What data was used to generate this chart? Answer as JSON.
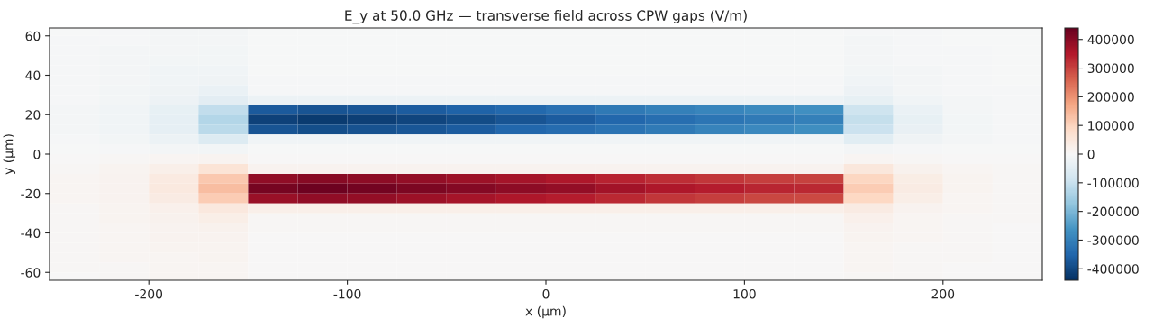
{
  "chart_data": {
    "type": "heatmap",
    "title": "E_y at 50.0 GHz — transverse field across CPW gaps (V/m)",
    "xlabel": "x (µm)",
    "ylabel": "y (µm)",
    "x": [
      -237.5,
      -212.5,
      -187.5,
      -162.5,
      -137.5,
      -112.5,
      -87.5,
      -62.5,
      -37.5,
      -12.5,
      12.5,
      37.5,
      62.5,
      87.5,
      112.5,
      137.5,
      162.5,
      187.5,
      212.5,
      237.5
    ],
    "y": [
      62.5,
      57.5,
      52.5,
      47.5,
      42.5,
      37.5,
      32.5,
      27.5,
      22.5,
      17.5,
      12.5,
      7.5,
      2.5,
      -2.5,
      -7.5,
      -12.5,
      -17.5,
      -22.5,
      -27.5,
      -32.5,
      -37.5,
      -42.5,
      -47.5,
      -52.5,
      -57.5,
      -62.5
    ],
    "cells": [
      [
        -3000,
        -5000,
        -8000,
        -8000,
        -2000,
        -2000,
        -2000,
        -2000,
        -2000,
        -2000,
        -2000,
        -2000,
        -2000,
        -2000,
        -2000,
        -2000,
        -6000,
        -4000,
        -3000,
        -2000
      ],
      [
        -4000,
        -6000,
        -9000,
        -9000,
        -2000,
        -2000,
        -2000,
        -2000,
        -2000,
        -2000,
        -2000,
        -2000,
        -2000,
        -2000,
        -2000,
        -2000,
        -7000,
        -5000,
        -3000,
        -2000
      ],
      [
        -4000,
        -7000,
        -10000,
        -11000,
        -2000,
        -2000,
        -2000,
        -2000,
        -2000,
        -2000,
        -2000,
        -2000,
        -2000,
        -2000,
        -2000,
        -2000,
        -8000,
        -5000,
        -4000,
        -3000
      ],
      [
        -5000,
        -8000,
        -12000,
        -13000,
        -3000,
        -3000,
        -3000,
        -3000,
        -3000,
        -3000,
        -3000,
        -3000,
        -3000,
        -3000,
        -3000,
        -3000,
        -10000,
        -6000,
        -4000,
        -3000
      ],
      [
        -5000,
        -9000,
        -14000,
        -16000,
        -3000,
        -3000,
        -3000,
        -3000,
        -3000,
        -3000,
        -3000,
        -3000,
        -3000,
        -3000,
        -3000,
        -3000,
        -12000,
        -7000,
        -5000,
        -3000
      ],
      [
        -5000,
        -10000,
        -16000,
        -20000,
        -4000,
        -4000,
        -4000,
        -4000,
        -4000,
        -4000,
        -4000,
        -4000,
        -4000,
        -4000,
        -4000,
        -4000,
        -15000,
        -8000,
        -5000,
        -3000
      ],
      [
        -6000,
        -11000,
        -18000,
        -28000,
        -6000,
        -6000,
        -6000,
        -6000,
        -6000,
        -6000,
        -6000,
        -6000,
        -6000,
        -6000,
        -6000,
        -6000,
        -22000,
        -10000,
        -6000,
        -4000
      ],
      [
        -6000,
        -12000,
        -22000,
        -45000,
        -25000,
        -25000,
        -25000,
        -25000,
        -25000,
        -25000,
        -25000,
        -25000,
        -25000,
        -25000,
        -25000,
        -25000,
        -35000,
        -14000,
        -7000,
        -4000
      ],
      [
        -7000,
        -14000,
        -35000,
        -110000,
        -370000,
        -380000,
        -375000,
        -365000,
        -355000,
        -345000,
        -330000,
        -315000,
        -300000,
        -290000,
        -280000,
        -270000,
        -90000,
        -30000,
        -10000,
        -5000
      ],
      [
        -8000,
        -15000,
        -40000,
        -130000,
        -410000,
        -420000,
        -415000,
        -405000,
        -395000,
        -380000,
        -365000,
        -350000,
        -335000,
        -320000,
        -310000,
        -300000,
        -105000,
        -35000,
        -12000,
        -6000
      ],
      [
        -8000,
        -15000,
        -38000,
        -120000,
        -380000,
        -390000,
        -385000,
        -375000,
        -365000,
        -350000,
        -340000,
        -325000,
        -310000,
        -295000,
        -285000,
        -275000,
        -95000,
        -32000,
        -11000,
        -6000
      ],
      [
        -6000,
        -12000,
        -25000,
        -60000,
        -15000,
        -15000,
        -15000,
        -15000,
        -15000,
        -15000,
        -15000,
        -15000,
        -15000,
        -15000,
        -15000,
        -15000,
        -50000,
        -20000,
        -8000,
        -5000
      ],
      [
        -3000,
        -5000,
        -8000,
        -12000,
        -3000,
        -3000,
        -3000,
        -3000,
        -3000,
        -3000,
        -3000,
        -3000,
        -3000,
        -3000,
        -3000,
        -3000,
        -10000,
        -5000,
        -3000,
        -2000
      ],
      [
        3000,
        5000,
        8000,
        12000,
        3000,
        3000,
        3000,
        3000,
        3000,
        3000,
        3000,
        3000,
        3000,
        3000,
        3000,
        3000,
        10000,
        5000,
        3000,
        2000
      ],
      [
        6000,
        12000,
        25000,
        60000,
        15000,
        15000,
        15000,
        15000,
        15000,
        15000,
        15000,
        15000,
        15000,
        15000,
        15000,
        15000,
        50000,
        20000,
        8000,
        5000
      ],
      [
        8000,
        15000,
        38000,
        120000,
        390000,
        400000,
        395000,
        385000,
        375000,
        365000,
        355000,
        340000,
        325000,
        315000,
        305000,
        300000,
        95000,
        32000,
        11000,
        6000
      ],
      [
        8000,
        16000,
        42000,
        135000,
        420000,
        430000,
        425000,
        415000,
        405000,
        395000,
        385000,
        370000,
        355000,
        345000,
        335000,
        330000,
        110000,
        36000,
        12000,
        6000
      ],
      [
        7000,
        14000,
        35000,
        110000,
        380000,
        390000,
        385000,
        375000,
        365000,
        355000,
        345000,
        330000,
        315000,
        305000,
        295000,
        290000,
        90000,
        30000,
        10000,
        5000
      ],
      [
        6000,
        12000,
        22000,
        45000,
        25000,
        25000,
        25000,
        25000,
        25000,
        25000,
        25000,
        25000,
        25000,
        25000,
        25000,
        25000,
        35000,
        14000,
        7000,
        4000
      ],
      [
        6000,
        11000,
        18000,
        28000,
        6000,
        6000,
        6000,
        6000,
        6000,
        6000,
        6000,
        6000,
        6000,
        6000,
        6000,
        6000,
        22000,
        10000,
        6000,
        4000
      ],
      [
        5000,
        10000,
        16000,
        20000,
        4000,
        4000,
        4000,
        4000,
        4000,
        4000,
        4000,
        4000,
        4000,
        4000,
        4000,
        4000,
        15000,
        8000,
        5000,
        3000
      ],
      [
        5000,
        9000,
        14000,
        16000,
        3000,
        3000,
        3000,
        3000,
        3000,
        3000,
        3000,
        3000,
        3000,
        3000,
        3000,
        3000,
        12000,
        7000,
        5000,
        3000
      ],
      [
        5000,
        8000,
        12000,
        13000,
        3000,
        3000,
        3000,
        3000,
        3000,
        3000,
        3000,
        3000,
        3000,
        3000,
        3000,
        3000,
        10000,
        6000,
        4000,
        3000
      ],
      [
        4000,
        7000,
        10000,
        11000,
        2000,
        2000,
        2000,
        2000,
        2000,
        2000,
        2000,
        2000,
        2000,
        2000,
        2000,
        2000,
        8000,
        5000,
        4000,
        3000
      ],
      [
        4000,
        6000,
        9000,
        9000,
        2000,
        2000,
        2000,
        2000,
        2000,
        2000,
        2000,
        2000,
        2000,
        2000,
        2000,
        2000,
        7000,
        5000,
        3000,
        2000
      ],
      [
        3000,
        5000,
        8000,
        8000,
        2000,
        2000,
        2000,
        2000,
        2000,
        2000,
        2000,
        2000,
        2000,
        2000,
        2000,
        2000,
        6000,
        4000,
        3000,
        2000
      ]
    ],
    "xlim": [
      -250,
      250
    ],
    "ylim": [
      -64,
      64
    ],
    "xticks": [
      -200,
      -100,
      0,
      100,
      200
    ],
    "yticks": [
      -60,
      -40,
      -20,
      0,
      20,
      40,
      60
    ],
    "clim": [
      -440000,
      440000
    ],
    "cticks": [
      -400000,
      -300000,
      -200000,
      -100000,
      0,
      100000,
      200000,
      300000,
      400000
    ]
  }
}
